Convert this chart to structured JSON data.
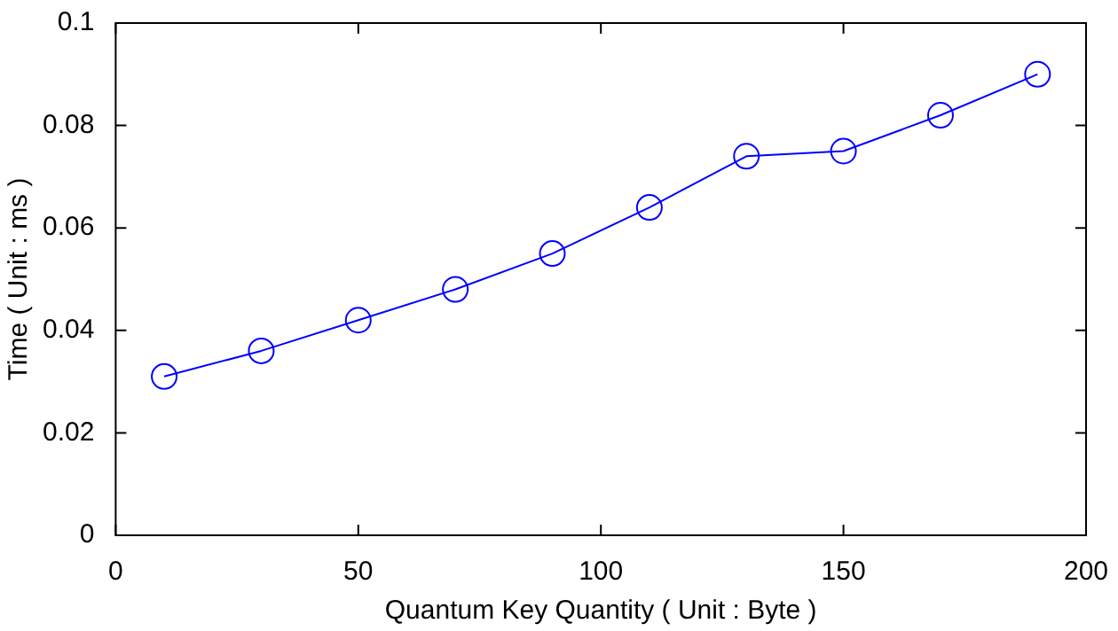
{
  "chart_data": {
    "type": "line",
    "xlabel": "Quantum Key Quantity ( Unit : Byte )",
    "ylabel": "Time ( Unit : ms )",
    "x": [
      10,
      30,
      50,
      70,
      90,
      110,
      130,
      150,
      170,
      190
    ],
    "series": [
      {
        "color": "#0000ff",
        "values": [
          0.031,
          0.036,
          0.042,
          0.048,
          0.055,
          0.064,
          0.074,
          0.075,
          0.082,
          0.09
        ]
      }
    ],
    "xlim": [
      0,
      200
    ],
    "xticks": [
      0,
      50,
      100,
      150,
      200
    ],
    "ylim": [
      0,
      0.1
    ],
    "yticks": [
      0,
      0.02,
      0.04,
      0.06,
      0.08,
      0.1
    ],
    "marker": "circle",
    "line_style": "solid",
    "legend": false
  }
}
